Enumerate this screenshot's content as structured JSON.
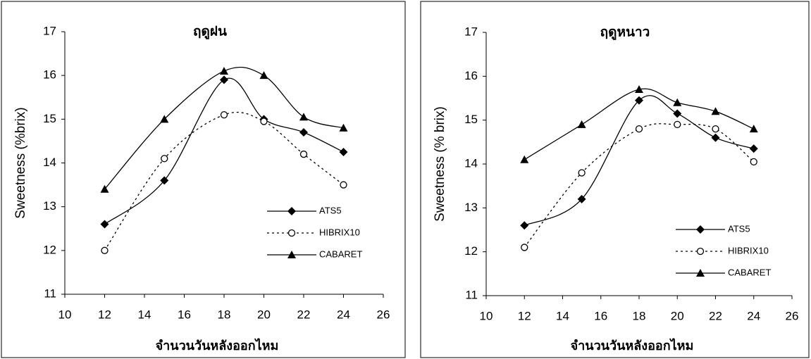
{
  "chart_data": [
    {
      "type": "line",
      "title": "ฤดูฝน",
      "x_label": "จำนวนวันหลังออกไหม",
      "y_label": "Sweetness (%brix)",
      "x": [
        12,
        15,
        18,
        20,
        22,
        24
      ],
      "series": [
        {
          "name": "ATS5",
          "color": "#000000",
          "marker": "diamond",
          "dashed": false,
          "values": [
            12.6,
            13.6,
            15.9,
            15.0,
            14.7,
            14.25
          ]
        },
        {
          "name": "HIBRIX10",
          "color": "#000000",
          "marker": "circle",
          "dashed": true,
          "values": [
            12.0,
            14.1,
            15.1,
            14.95,
            14.2,
            13.5
          ]
        },
        {
          "name": "CABARET",
          "color": "#000000",
          "marker": "triangle",
          "dashed": false,
          "values": [
            13.4,
            15.0,
            16.1,
            16.0,
            15.05,
            14.8
          ]
        }
      ],
      "xlim": [
        10,
        26
      ],
      "xticks": [
        10,
        12,
        14,
        16,
        18,
        20,
        22,
        24,
        26
      ],
      "ylim": [
        11,
        17
      ],
      "yticks": [
        11,
        12,
        13,
        14,
        15,
        16,
        17
      ],
      "grid": false
    },
    {
      "type": "line",
      "title": "ฤดูหนาว",
      "x_label": "จำนวนวันหลังออกไหม",
      "y_label": "Sweetness (% brix)",
      "x": [
        12,
        15,
        18,
        20,
        22,
        24
      ],
      "series": [
        {
          "name": "ATS5",
          "color": "#000000",
          "marker": "diamond",
          "dashed": false,
          "values": [
            12.6,
            13.2,
            15.45,
            15.15,
            14.6,
            14.35
          ]
        },
        {
          "name": "HIBRIX10",
          "color": "#000000",
          "marker": "circle",
          "dashed": true,
          "values": [
            12.1,
            13.8,
            14.8,
            14.9,
            14.8,
            14.05
          ]
        },
        {
          "name": "CABARET",
          "color": "#000000",
          "marker": "triangle",
          "dashed": false,
          "values": [
            14.1,
            14.9,
            15.7,
            15.4,
            15.2,
            14.8
          ]
        }
      ],
      "xlim": [
        10,
        26
      ],
      "xticks": [
        10,
        12,
        14,
        16,
        18,
        20,
        22,
        24,
        26
      ],
      "ylim": [
        11,
        17
      ],
      "yticks": [
        11,
        12,
        13,
        14,
        15,
        16,
        17
      ],
      "grid": false
    }
  ]
}
